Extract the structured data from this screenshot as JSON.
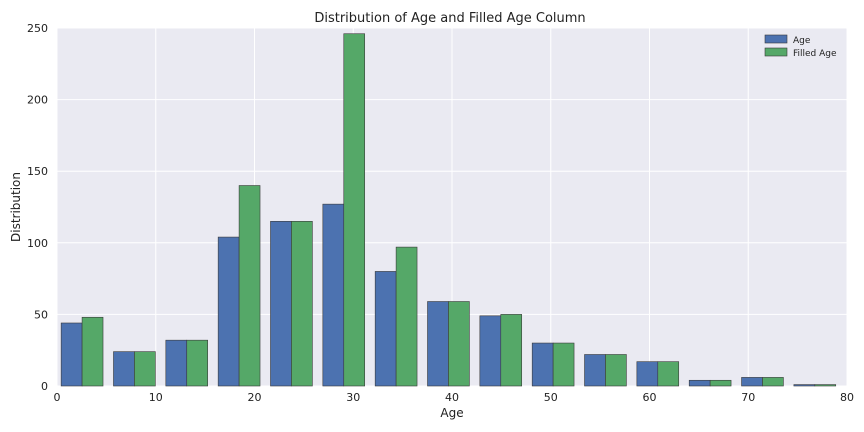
{
  "chart_data": {
    "type": "bar",
    "title": "Distribution of Age and Filled Age Column",
    "xlabel": "Age",
    "ylabel": "Distribution",
    "xlim": [
      0,
      80
    ],
    "ylim": [
      0,
      250
    ],
    "xticks": [
      0,
      10,
      20,
      30,
      40,
      50,
      60,
      70,
      80
    ],
    "yticks": [
      0,
      50,
      100,
      150,
      200,
      250
    ],
    "grid": true,
    "legend_position": "top-right",
    "bin_edges": [
      0.42,
      5.72,
      11.02,
      16.32,
      21.62,
      26.92,
      32.22,
      37.52,
      42.82,
      48.12,
      53.42,
      58.72,
      64.02,
      69.32,
      74.62,
      79.92
    ],
    "series": [
      {
        "name": "Age",
        "color": "#4C72B0",
        "values": [
          44,
          24,
          32,
          104,
          115,
          127,
          80,
          59,
          49,
          30,
          22,
          17,
          4,
          6,
          1
        ]
      },
      {
        "name": "Filled Age",
        "color": "#55A868",
        "values": [
          48,
          24,
          32,
          140,
          115,
          246,
          97,
          59,
          50,
          30,
          22,
          17,
          4,
          6,
          1
        ]
      }
    ]
  }
}
